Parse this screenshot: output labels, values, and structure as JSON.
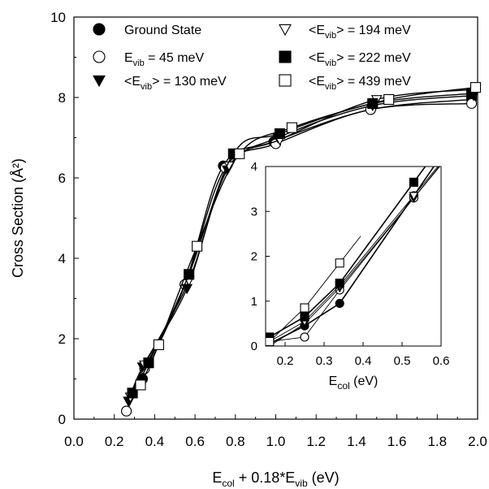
{
  "chart_data": [
    {
      "type": "line",
      "xlabel": {
        "base": "E",
        "sub": "col",
        "rest": " + 0.18*E",
        "sub2": "vib",
        "unit": " (eV)"
      },
      "ylabel": "Cross Section (Å²)",
      "xlim": [
        0.0,
        2.0
      ],
      "ylim": [
        0,
        10
      ],
      "x_ticks": [
        "0.0",
        "0.2",
        "0.4",
        "0.6",
        "0.8",
        "1.0",
        "1.2",
        "1.4",
        "1.6",
        "1.8",
        "2.0"
      ],
      "y_ticks": [
        "0",
        "2",
        "4",
        "6",
        "8",
        "10"
      ],
      "legend_position": "top",
      "series": [
        {
          "name": "Ground State",
          "legend": {
            "pre": "Ground State",
            "sub": "",
            "post": ""
          },
          "marker": "circle-filled",
          "x": [
            0.26,
            0.34,
            0.55,
            0.74,
            0.99,
            1.47,
            1.97
          ],
          "y": [
            0.2,
            1.0,
            3.35,
            6.3,
            6.9,
            7.7,
            7.95
          ]
        },
        {
          "name": "E_vib = 45 meV",
          "legend": {
            "pre": "E",
            "sub": "vib",
            "post": " = 45 meV"
          },
          "marker": "circle-open",
          "x": [
            0.26,
            0.35,
            0.55,
            0.75,
            1.0,
            1.47,
            1.97
          ],
          "y": [
            0.2,
            1.25,
            3.35,
            6.25,
            6.85,
            7.7,
            7.85
          ]
        },
        {
          "name": "<E_vib> = 130 meV",
          "legend": {
            "pre": "<E",
            "sub": "vib",
            "post": "> = 130 meV"
          },
          "marker": "triangle-down-filled",
          "x": [
            0.27,
            0.34,
            0.56,
            0.76,
            1.01,
            1.48,
            1.98
          ],
          "y": [
            0.45,
            1.3,
            3.25,
            6.2,
            7.0,
            7.8,
            8.05
          ]
        },
        {
          "name": "<E_vib> = 194 meV",
          "legend": {
            "pre": "<E",
            "sub": "vib",
            "post": "> = 194 meV"
          },
          "marker": "triangle-down-open",
          "x": [
            0.28,
            0.35,
            0.57,
            0.77,
            1.02,
            1.5,
            1.99
          ],
          "y": [
            0.55,
            1.35,
            3.45,
            6.3,
            6.95,
            7.95,
            8.2
          ]
        },
        {
          "name": "<E_vib> = 222 meV",
          "legend": {
            "pre": "<E",
            "sub": "vib",
            "post": "> = 222 meV"
          },
          "marker": "square-filled",
          "x": [
            0.29,
            0.37,
            0.57,
            0.79,
            1.02,
            1.48,
            1.97
          ],
          "y": [
            0.65,
            1.4,
            3.6,
            6.6,
            7.1,
            7.85,
            8.1
          ]
        },
        {
          "name": "<E_vib> = 439 meV",
          "legend": {
            "pre": "<E",
            "sub": "vib",
            "post": "> = 439 meV"
          },
          "marker": "square-open",
          "x": [
            0.33,
            0.42,
            0.61,
            0.82,
            1.08,
            1.56,
            1.99
          ],
          "y": [
            0.85,
            1.85,
            4.3,
            6.6,
            7.25,
            7.95,
            8.25
          ]
        }
      ]
    },
    {
      "type": "line",
      "inset": true,
      "xlabel": {
        "base": "E",
        "sub": "col",
        "unit": " (eV)"
      },
      "xlim": [
        0.15,
        0.6
      ],
      "ylim": [
        0,
        4
      ],
      "x_ticks": [
        "0.2",
        "0.3",
        "0.4",
        "0.5",
        "0.6"
      ],
      "y_ticks": [
        "0",
        "1",
        "2",
        "3",
        "4"
      ],
      "series": [
        {
          "name": "Ground State",
          "marker": "circle-filled",
          "x": [
            0.16,
            0.25,
            0.34,
            0.53
          ],
          "y": [
            0.05,
            0.45,
            0.95,
            3.35
          ]
        },
        {
          "name": "E_vib = 45 meV",
          "marker": "circle-open",
          "x": [
            0.16,
            0.25,
            0.34,
            0.53
          ],
          "y": [
            0.1,
            0.2,
            1.25,
            3.3
          ]
        },
        {
          "name": "<E_vib> = 130 meV",
          "marker": "triangle-down-filled",
          "x": [
            0.16,
            0.25,
            0.34,
            0.53
          ],
          "y": [
            0.0,
            0.5,
            1.3,
            3.3
          ]
        },
        {
          "name": "<E_vib> = 194 meV",
          "marker": "triangle-down-open",
          "x": [
            0.16,
            0.25,
            0.34,
            0.53
          ],
          "y": [
            0.1,
            0.55,
            1.35,
            3.35
          ]
        },
        {
          "name": "<E_vib> = 222 meV",
          "marker": "square-filled",
          "x": [
            0.16,
            0.25,
            0.34,
            0.53
          ],
          "y": [
            0.2,
            0.65,
            1.4,
            3.65
          ]
        },
        {
          "name": "<E_vib> = 439 meV",
          "marker": "square-open",
          "x": [
            0.16,
            0.25,
            0.34
          ],
          "y": [
            0.1,
            0.85,
            1.85
          ]
        }
      ]
    }
  ]
}
